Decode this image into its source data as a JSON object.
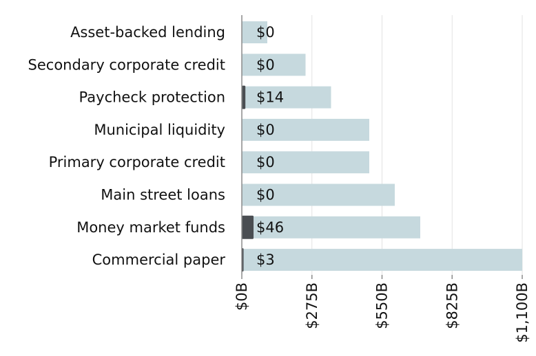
{
  "chart_data": {
    "type": "bar",
    "orientation": "horizontal",
    "title": "",
    "xlabel": "",
    "ylabel": "",
    "categories": [
      "Asset-backed lending",
      "Secondary corporate credit",
      "Paycheck protection",
      "Municipal liquidity",
      "Primary corporate credit",
      "Main street loans",
      "Money market funds",
      "Commercial paper"
    ],
    "series": [
      {
        "values": [
          100,
          250,
          350,
          500,
          500,
          600,
          700,
          1100
        ],
        "color": "#c6d9de"
      },
      {
        "values": [
          0,
          0,
          14,
          0,
          0,
          0,
          46,
          3
        ],
        "color": "#4a4e52"
      }
    ],
    "value_labels": [
      "$0",
      "$0",
      "$14",
      "$0",
      "$0",
      "$0",
      "$46",
      "$3"
    ],
    "xlim": [
      0,
      1100
    ],
    "xticks": [
      0,
      275,
      550,
      825,
      1100
    ],
    "xtick_labels": [
      "$0B",
      "$275B",
      "$550B",
      "$825B",
      "$1,100B"
    ],
    "grid": true,
    "legend": "none",
    "colors": {
      "capacity_bar": "#c6d9de",
      "used_bar": "#4a4e52",
      "grid": "#e2e2e2",
      "axis": "#8a8a8a",
      "text": "#111111"
    }
  }
}
